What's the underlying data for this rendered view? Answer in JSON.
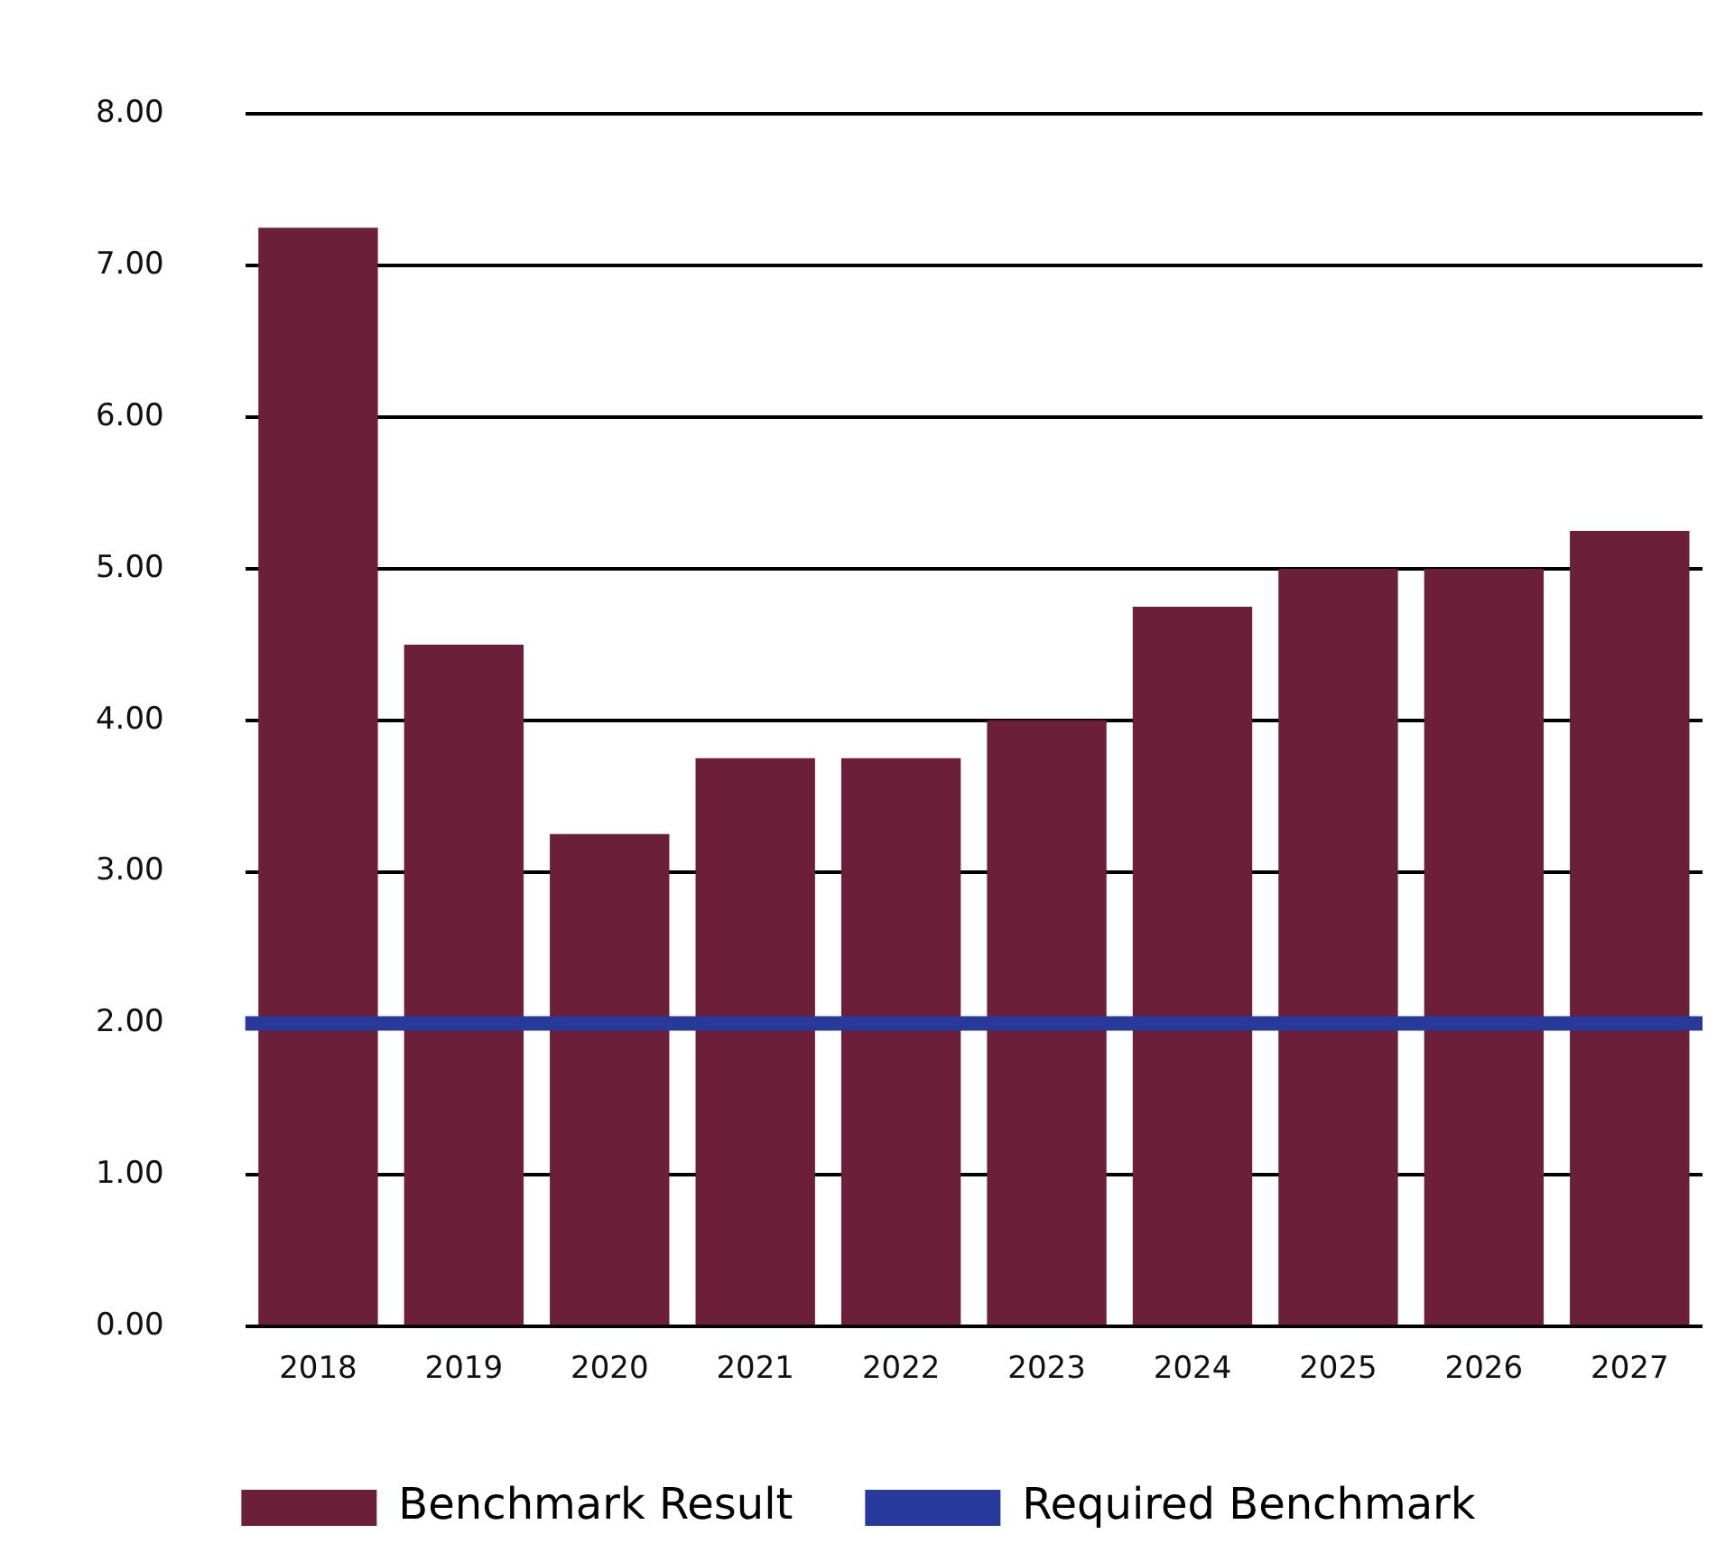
{
  "chart_data": {
    "type": "bar",
    "categories": [
      "2018",
      "2019",
      "2020",
      "2021",
      "2022",
      "2023",
      "2024",
      "2025",
      "2026",
      "2027"
    ],
    "series": [
      {
        "name": "Benchmark Result",
        "color": "#6b1f38",
        "values": [
          7.25,
          4.5,
          3.25,
          3.75,
          3.75,
          4.0,
          4.75,
          5.0,
          5.0,
          5.25
        ]
      }
    ],
    "ylim": [
      0,
      8
    ],
    "yticks": [
      {
        "value": 0,
        "label": "0.00"
      },
      {
        "value": 1,
        "label": "1.00"
      },
      {
        "value": 2,
        "label": "2.00"
      },
      {
        "value": 3,
        "label": "3.00"
      },
      {
        "value": 4,
        "label": "4.00"
      },
      {
        "value": 5,
        "label": "5.00"
      },
      {
        "value": 6,
        "label": "6.00"
      },
      {
        "value": 7,
        "label": "7.00"
      },
      {
        "value": 8,
        "label": "8.00"
      }
    ],
    "ref_lines": [
      {
        "axis": "y",
        "value": 2,
        "label": "Required Benchmark",
        "color": "#27399a"
      }
    ],
    "grid": "y",
    "legend": "bottom"
  }
}
